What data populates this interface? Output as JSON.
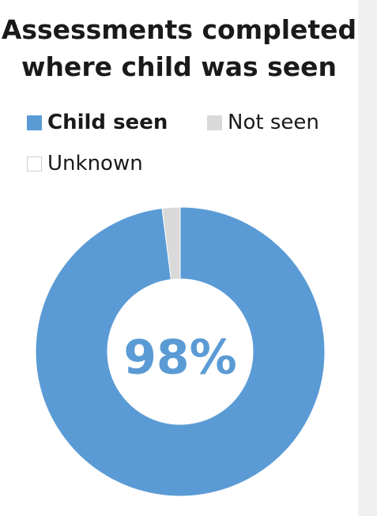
{
  "chart_data": {
    "type": "pie",
    "title": "Assessments completed where child was seen",
    "title_lines": [
      "Assessments completed",
      "where child was seen"
    ],
    "categories": [
      "Child seen",
      "Not seen",
      "Unknown"
    ],
    "values": [
      98,
      2,
      0
    ],
    "colors": [
      "#5b9bd5",
      "#d9d9d9",
      "#ffffff"
    ],
    "highlight_category": "Child seen",
    "center_label": "98%",
    "donut": true,
    "legend_position": "top"
  }
}
